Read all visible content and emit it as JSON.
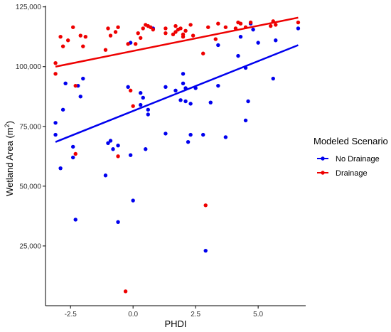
{
  "chart_data": {
    "type": "scatter",
    "title": "",
    "xlabel": "PHDI",
    "ylabel": "Wetland Area (m",
    "ylabel_superscript": "2",
    "ylabel_close": ")",
    "xlim": [
      -3.5,
      6.9
    ],
    "ylim": [
      0,
      125500
    ],
    "x_ticks": [
      -2.5,
      0.0,
      2.5,
      5.0
    ],
    "x_tick_labels": [
      "-2.5",
      "0.0",
      "2.5",
      "5.0"
    ],
    "y_ticks": [
      25000,
      50000,
      75000,
      100000,
      125000
    ],
    "y_tick_labels": [
      "25,000",
      "50,000",
      "75,000",
      "100,000",
      "125,000"
    ],
    "grid": false,
    "legend": {
      "title": "Modeled Scenario",
      "placement": "right"
    },
    "series": [
      {
        "name": "No Drainage",
        "color": "#0000ee",
        "trend": {
          "x": [
            -3.1,
            6.6
          ],
          "y": [
            68500,
            109000
          ]
        },
        "points": [
          [
            -3.1,
            76500
          ],
          [
            -3.1,
            71500
          ],
          [
            -2.9,
            57500
          ],
          [
            -2.8,
            82000
          ],
          [
            -2.7,
            93000
          ],
          [
            -2.4,
            66500
          ],
          [
            -2.4,
            62000
          ],
          [
            -2.3,
            36000
          ],
          [
            -2.2,
            92000
          ],
          [
            -2.1,
            87500
          ],
          [
            -2.0,
            95000
          ],
          [
            -1.1,
            54500
          ],
          [
            -1.0,
            68000
          ],
          [
            -0.9,
            69000
          ],
          [
            -0.8,
            65500
          ],
          [
            -0.6,
            67000
          ],
          [
            -0.6,
            35000
          ],
          [
            -0.2,
            91500
          ],
          [
            -0.1,
            63000
          ],
          [
            -0.1,
            110000
          ],
          [
            0.0,
            44000
          ],
          [
            0.3,
            89000
          ],
          [
            0.3,
            84000
          ],
          [
            0.4,
            87000
          ],
          [
            0.5,
            65500
          ],
          [
            0.6,
            80000
          ],
          [
            0.6,
            82000
          ],
          [
            0.8,
            116000
          ],
          [
            1.3,
            91500
          ],
          [
            1.3,
            72000
          ],
          [
            1.7,
            90000
          ],
          [
            1.9,
            86000
          ],
          [
            2.0,
            97000
          ],
          [
            2.0,
            93000
          ],
          [
            2.1,
            91000
          ],
          [
            2.1,
            85500
          ],
          [
            2.2,
            68500
          ],
          [
            2.3,
            71500
          ],
          [
            2.3,
            84500
          ],
          [
            2.5,
            91000
          ],
          [
            2.8,
            71500
          ],
          [
            2.9,
            23000
          ],
          [
            3.1,
            85000
          ],
          [
            3.4,
            109000
          ],
          [
            3.4,
            92000
          ],
          [
            3.7,
            70500
          ],
          [
            4.2,
            104500
          ],
          [
            4.3,
            112500
          ],
          [
            4.5,
            77500
          ],
          [
            4.5,
            99500
          ],
          [
            4.6,
            85500
          ],
          [
            4.7,
            118000
          ],
          [
            4.8,
            115500
          ],
          [
            5.0,
            110000
          ],
          [
            5.6,
            95000
          ],
          [
            5.7,
            111000
          ],
          [
            6.6,
            116000
          ]
        ]
      },
      {
        "name": "Drainage",
        "color": "#ee0000",
        "trend": {
          "x": [
            -3.1,
            6.6
          ],
          "y": [
            100000,
            120500
          ]
        },
        "points": [
          [
            -3.1,
            101500
          ],
          [
            -3.1,
            97000
          ],
          [
            -2.9,
            112500
          ],
          [
            -2.8,
            108500
          ],
          [
            -2.6,
            111000
          ],
          [
            -2.4,
            116500
          ],
          [
            -2.3,
            92000
          ],
          [
            -2.3,
            63500
          ],
          [
            -2.1,
            113000
          ],
          [
            -2.0,
            108500
          ],
          [
            -1.9,
            112500
          ],
          [
            -1.1,
            107000
          ],
          [
            -1.0,
            116000
          ],
          [
            -0.9,
            113000
          ],
          [
            -0.7,
            114500
          ],
          [
            -0.6,
            116500
          ],
          [
            -0.6,
            62500
          ],
          [
            -0.3,
            6000
          ],
          [
            -0.2,
            109500
          ],
          [
            -0.1,
            90000
          ],
          [
            0.0,
            83500
          ],
          [
            0.1,
            109500
          ],
          [
            0.2,
            114000
          ],
          [
            0.3,
            112000
          ],
          [
            0.4,
            116000
          ],
          [
            0.5,
            117500
          ],
          [
            0.6,
            117000
          ],
          [
            0.7,
            116500
          ],
          [
            0.8,
            115500
          ],
          [
            1.3,
            116000
          ],
          [
            1.3,
            114000
          ],
          [
            1.6,
            113500
          ],
          [
            1.7,
            114500
          ],
          [
            1.7,
            117000
          ],
          [
            1.8,
            115500
          ],
          [
            1.9,
            116000
          ],
          [
            2.0,
            113500
          ],
          [
            2.0,
            112500
          ],
          [
            2.1,
            115000
          ],
          [
            2.3,
            117500
          ],
          [
            2.4,
            113000
          ],
          [
            2.8,
            105500
          ],
          [
            2.9,
            42000
          ],
          [
            3.0,
            116500
          ],
          [
            3.3,
            111500
          ],
          [
            3.4,
            118000
          ],
          [
            3.7,
            116500
          ],
          [
            4.1,
            116000
          ],
          [
            4.2,
            118500
          ],
          [
            4.3,
            118000
          ],
          [
            4.5,
            116500
          ],
          [
            4.7,
            118500
          ],
          [
            5.5,
            117000
          ],
          [
            5.6,
            119000
          ],
          [
            5.7,
            117500
          ],
          [
            6.6,
            118500
          ]
        ]
      }
    ]
  }
}
